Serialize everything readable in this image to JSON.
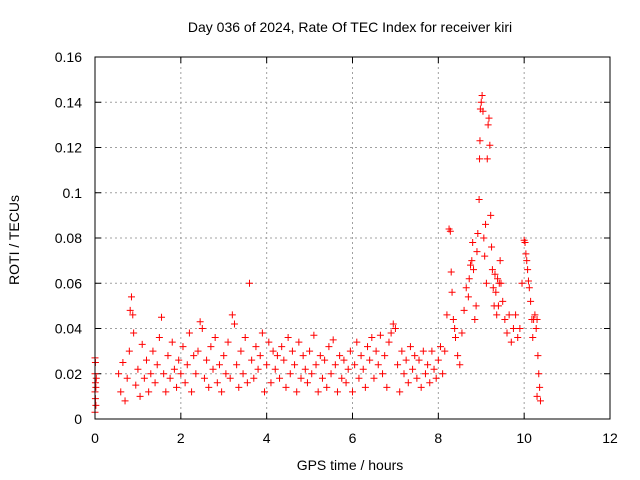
{
  "chart_data": {
    "type": "scatter",
    "title": "Day 036 of 2024, Rate Of TEC Index for receiver kiri",
    "xlabel": "GPS time / hours",
    "ylabel": "ROTI / TECUs",
    "xlim": [
      0,
      12
    ],
    "ylim": [
      0,
      0.16
    ],
    "xticks": [
      0,
      2,
      4,
      6,
      8,
      10,
      12
    ],
    "xtick_labels": [
      "0",
      "2",
      "4",
      "6",
      "8",
      "10",
      "12"
    ],
    "yticks": [
      0,
      0.02,
      0.04,
      0.06,
      0.08,
      0.1,
      0.12,
      0.14,
      0.16
    ],
    "ytick_labels": [
      "0",
      "0.02",
      "0.04",
      "0.06",
      "0.08",
      "0.1",
      "0.12",
      "0.14",
      "0.16"
    ],
    "grid": true,
    "marker": "plus",
    "color": "#ff0000",
    "series": [
      {
        "name": "ROTI",
        "points": [
          [
            0.0,
            0.027
          ],
          [
            0.01,
            0.025
          ],
          [
            0.0,
            0.02
          ],
          [
            0.01,
            0.016
          ],
          [
            0.02,
            0.014
          ],
          [
            0.0,
            0.012
          ],
          [
            0.01,
            0.009
          ],
          [
            0.02,
            0.006
          ],
          [
            0.0,
            0.003
          ],
          [
            0.03,
            0.018
          ],
          [
            0.55,
            0.02
          ],
          [
            0.6,
            0.012
          ],
          [
            0.65,
            0.025
          ],
          [
            0.7,
            0.008
          ],
          [
            0.75,
            0.018
          ],
          [
            0.8,
            0.03
          ],
          [
            0.82,
            0.048
          ],
          [
            0.85,
            0.054
          ],
          [
            0.88,
            0.046
          ],
          [
            0.9,
            0.038
          ],
          [
            0.95,
            0.015
          ],
          [
            1.0,
            0.022
          ],
          [
            1.05,
            0.01
          ],
          [
            1.1,
            0.033
          ],
          [
            1.15,
            0.018
          ],
          [
            1.2,
            0.026
          ],
          [
            1.25,
            0.012
          ],
          [
            1.3,
            0.02
          ],
          [
            1.35,
            0.03
          ],
          [
            1.4,
            0.016
          ],
          [
            1.45,
            0.024
          ],
          [
            1.5,
            0.036
          ],
          [
            1.55,
            0.045
          ],
          [
            1.6,
            0.02
          ],
          [
            1.65,
            0.012
          ],
          [
            1.7,
            0.028
          ],
          [
            1.75,
            0.018
          ],
          [
            1.8,
            0.034
          ],
          [
            1.85,
            0.022
          ],
          [
            1.9,
            0.014
          ],
          [
            1.95,
            0.026
          ],
          [
            2.0,
            0.02
          ],
          [
            2.05,
            0.032
          ],
          [
            2.1,
            0.016
          ],
          [
            2.15,
            0.024
          ],
          [
            2.2,
            0.038
          ],
          [
            2.25,
            0.012
          ],
          [
            2.3,
            0.028
          ],
          [
            2.35,
            0.02
          ],
          [
            2.4,
            0.03
          ],
          [
            2.45,
            0.043
          ],
          [
            2.5,
            0.04
          ],
          [
            2.55,
            0.018
          ],
          [
            2.6,
            0.026
          ],
          [
            2.65,
            0.014
          ],
          [
            2.7,
            0.032
          ],
          [
            2.75,
            0.022
          ],
          [
            2.8,
            0.036
          ],
          [
            2.85,
            0.016
          ],
          [
            2.9,
            0.024
          ],
          [
            2.95,
            0.012
          ],
          [
            3.0,
            0.028
          ],
          [
            3.05,
            0.02
          ],
          [
            3.1,
            0.034
          ],
          [
            3.15,
            0.018
          ],
          [
            3.2,
            0.046
          ],
          [
            3.25,
            0.042
          ],
          [
            3.3,
            0.024
          ],
          [
            3.35,
            0.014
          ],
          [
            3.4,
            0.03
          ],
          [
            3.45,
            0.02
          ],
          [
            3.5,
            0.036
          ],
          [
            3.55,
            0.016
          ],
          [
            3.6,
            0.06
          ],
          [
            3.65,
            0.026
          ],
          [
            3.7,
            0.018
          ],
          [
            3.75,
            0.032
          ],
          [
            3.8,
            0.022
          ],
          [
            3.85,
            0.028
          ],
          [
            3.9,
            0.038
          ],
          [
            3.95,
            0.012
          ],
          [
            4.0,
            0.024
          ],
          [
            4.05,
            0.034
          ],
          [
            4.1,
            0.016
          ],
          [
            4.15,
            0.03
          ],
          [
            4.2,
            0.022
          ],
          [
            4.25,
            0.028
          ],
          [
            4.3,
            0.018
          ],
          [
            4.35,
            0.032
          ],
          [
            4.4,
            0.026
          ],
          [
            4.45,
            0.014
          ],
          [
            4.5,
            0.036
          ],
          [
            4.55,
            0.02
          ],
          [
            4.6,
            0.03
          ],
          [
            4.65,
            0.024
          ],
          [
            4.7,
            0.012
          ],
          [
            4.75,
            0.034
          ],
          [
            4.8,
            0.018
          ],
          [
            4.85,
            0.028
          ],
          [
            4.9,
            0.022
          ],
          [
            4.95,
            0.016
          ],
          [
            5.0,
            0.03
          ],
          [
            5.05,
            0.02
          ],
          [
            5.1,
            0.037
          ],
          [
            5.15,
            0.024
          ],
          [
            5.2,
            0.012
          ],
          [
            5.25,
            0.028
          ],
          [
            5.3,
            0.018
          ],
          [
            5.35,
            0.026
          ],
          [
            5.4,
            0.014
          ],
          [
            5.45,
            0.032
          ],
          [
            5.5,
            0.02
          ],
          [
            5.55,
            0.035
          ],
          [
            5.6,
            0.024
          ],
          [
            5.65,
            0.012
          ],
          [
            5.7,
            0.028
          ],
          [
            5.75,
            0.018
          ],
          [
            5.8,
            0.026
          ],
          [
            5.85,
            0.016
          ],
          [
            5.9,
            0.022
          ],
          [
            5.95,
            0.03
          ],
          [
            6.0,
            0.012
          ],
          [
            6.05,
            0.024
          ],
          [
            6.1,
            0.034
          ],
          [
            6.15,
            0.018
          ],
          [
            6.2,
            0.028
          ],
          [
            6.25,
            0.022
          ],
          [
            6.3,
            0.014
          ],
          [
            6.35,
            0.032
          ],
          [
            6.4,
            0.026
          ],
          [
            6.45,
            0.036
          ],
          [
            6.5,
            0.018
          ],
          [
            6.55,
            0.03
          ],
          [
            6.6,
            0.024
          ],
          [
            6.65,
            0.037
          ],
          [
            6.7,
            0.02
          ],
          [
            6.75,
            0.028
          ],
          [
            6.8,
            0.014
          ],
          [
            6.85,
            0.034
          ],
          [
            6.9,
            0.038
          ],
          [
            6.95,
            0.042
          ],
          [
            7.0,
            0.04
          ],
          [
            7.05,
            0.024
          ],
          [
            7.1,
            0.012
          ],
          [
            7.15,
            0.03
          ],
          [
            7.2,
            0.02
          ],
          [
            7.25,
            0.026
          ],
          [
            7.3,
            0.016
          ],
          [
            7.35,
            0.032
          ],
          [
            7.4,
            0.022
          ],
          [
            7.45,
            0.028
          ],
          [
            7.5,
            0.018
          ],
          [
            7.55,
            0.026
          ],
          [
            7.6,
            0.014
          ],
          [
            7.65,
            0.03
          ],
          [
            7.7,
            0.02
          ],
          [
            7.75,
            0.024
          ],
          [
            7.8,
            0.016
          ],
          [
            7.85,
            0.03
          ],
          [
            7.9,
            0.022
          ],
          [
            7.95,
            0.018
          ],
          [
            8.0,
            0.026
          ],
          [
            8.05,
            0.032
          ],
          [
            8.1,
            0.02
          ],
          [
            8.15,
            0.03
          ],
          [
            8.2,
            0.046
          ],
          [
            8.25,
            0.084
          ],
          [
            8.28,
            0.083
          ],
          [
            8.3,
            0.065
          ],
          [
            8.32,
            0.056
          ],
          [
            8.35,
            0.044
          ],
          [
            8.38,
            0.04
          ],
          [
            8.4,
            0.036
          ],
          [
            8.45,
            0.028
          ],
          [
            8.5,
            0.024
          ],
          [
            8.55,
            0.038
          ],
          [
            8.6,
            0.048
          ],
          [
            8.65,
            0.058
          ],
          [
            8.7,
            0.054
          ],
          [
            8.72,
            0.062
          ],
          [
            8.75,
            0.068
          ],
          [
            8.78,
            0.07
          ],
          [
            8.8,
            0.078
          ],
          [
            8.82,
            0.066
          ],
          [
            8.85,
            0.044
          ],
          [
            8.88,
            0.05
          ],
          [
            8.9,
            0.074
          ],
          [
            8.92,
            0.082
          ],
          [
            8.95,
            0.097
          ],
          [
            8.96,
            0.115
          ],
          [
            8.97,
            0.123
          ],
          [
            8.98,
            0.137
          ],
          [
            9.0,
            0.14
          ],
          [
            9.02,
            0.143
          ],
          [
            9.04,
            0.136
          ],
          [
            9.06,
            0.08
          ],
          [
            9.08,
            0.072
          ],
          [
            9.1,
            0.086
          ],
          [
            9.12,
            0.06
          ],
          [
            9.14,
            0.115
          ],
          [
            9.16,
            0.13
          ],
          [
            9.18,
            0.133
          ],
          [
            9.2,
            0.121
          ],
          [
            9.22,
            0.09
          ],
          [
            9.24,
            0.076
          ],
          [
            9.26,
            0.066
          ],
          [
            9.28,
            0.058
          ],
          [
            9.3,
            0.05
          ],
          [
            9.32,
            0.064
          ],
          [
            9.34,
            0.056
          ],
          [
            9.36,
            0.046
          ],
          [
            9.38,
            0.062
          ],
          [
            9.4,
            0.05
          ],
          [
            9.42,
            0.06
          ],
          [
            9.44,
            0.07
          ],
          [
            9.46,
            0.06
          ],
          [
            9.5,
            0.052
          ],
          [
            9.55,
            0.044
          ],
          [
            9.6,
            0.038
          ],
          [
            9.65,
            0.046
          ],
          [
            9.7,
            0.034
          ],
          [
            9.75,
            0.04
          ],
          [
            9.8,
            0.046
          ],
          [
            9.85,
            0.036
          ],
          [
            9.9,
            0.04
          ],
          [
            9.95,
            0.06
          ],
          [
            10.0,
            0.079
          ],
          [
            10.02,
            0.078
          ],
          [
            10.04,
            0.073
          ],
          [
            10.06,
            0.07
          ],
          [
            10.08,
            0.066
          ],
          [
            10.1,
            0.061
          ],
          [
            10.12,
            0.058
          ],
          [
            10.15,
            0.052
          ],
          [
            10.18,
            0.044
          ],
          [
            10.2,
            0.036
          ],
          [
            10.22,
            0.044
          ],
          [
            10.25,
            0.046
          ],
          [
            10.28,
            0.04
          ],
          [
            10.3,
            0.044
          ],
          [
            10.32,
            0.028
          ],
          [
            10.34,
            0.02
          ],
          [
            10.36,
            0.014
          ],
          [
            10.38,
            0.008
          ],
          [
            10.3,
            0.01
          ]
        ]
      }
    ]
  }
}
